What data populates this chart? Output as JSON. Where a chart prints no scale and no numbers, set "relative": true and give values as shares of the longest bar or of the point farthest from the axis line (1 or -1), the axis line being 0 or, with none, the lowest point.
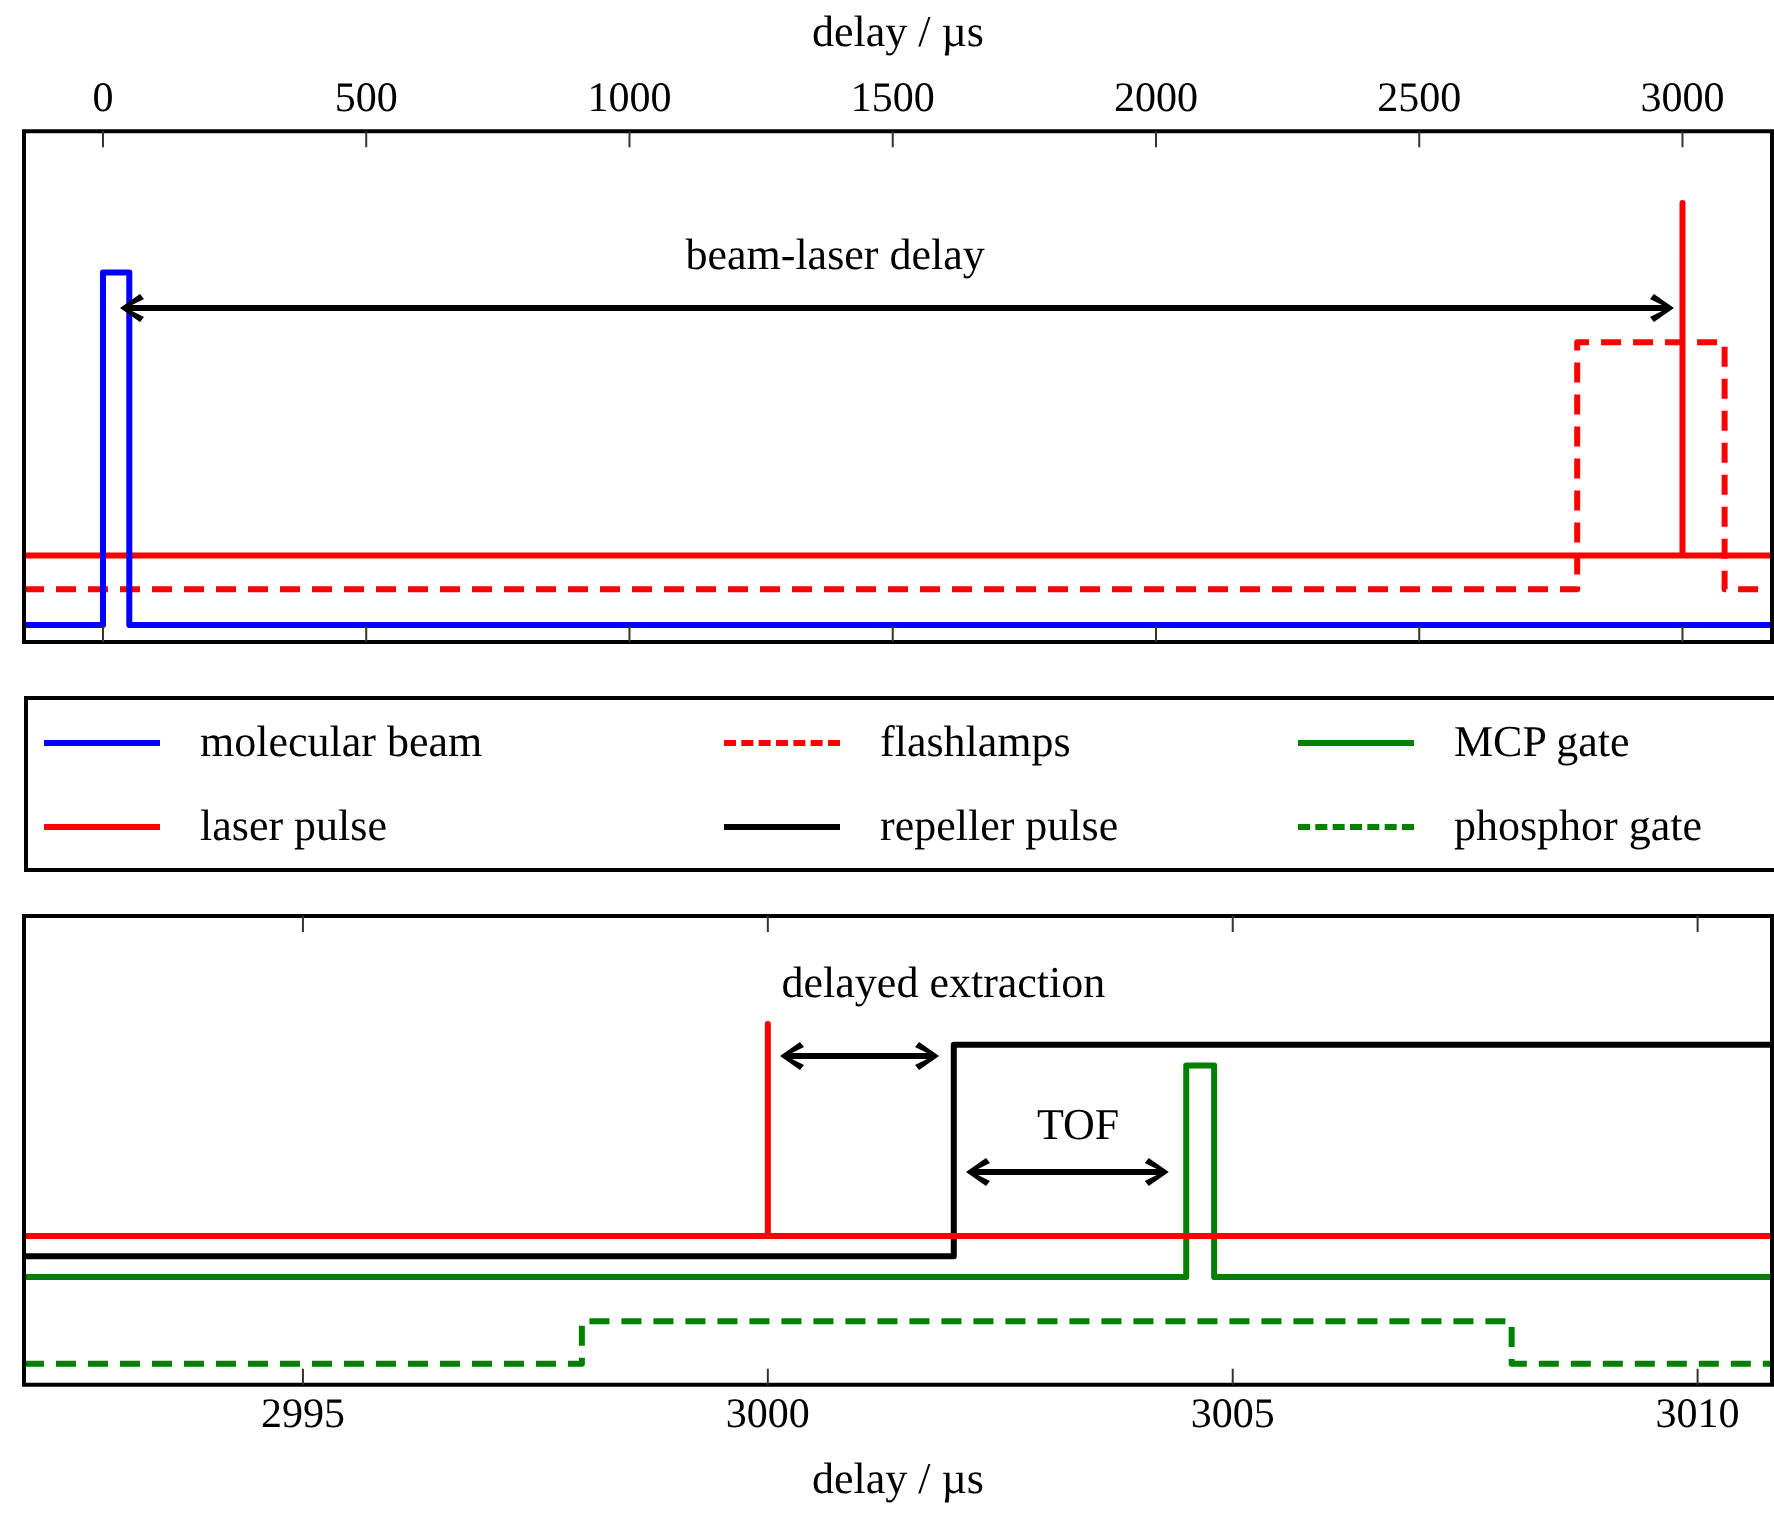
{
  "chart_data": [
    {
      "type": "step",
      "xlabel": "delay / µs",
      "xlim": [
        -150,
        3170
      ],
      "xticks": [
        0,
        500,
        1000,
        1500,
        2000,
        2500,
        3000
      ],
      "relative": true,
      "legend": "bottom",
      "annotations": [
        "beam-laser delay"
      ],
      "series": [
        {
          "name": "molecular beam",
          "color": "#0000ff",
          "x": [
            -150,
            0,
            50,
            3170
          ],
          "values": [
            0,
            0.835,
            0,
            0
          ]
        },
        {
          "name": "laser pulse",
          "color": "#ff0000",
          "x": [
            -150,
            3000,
            3000,
            3170
          ],
          "values": [
            0.165,
            1,
            0.165,
            0.165
          ]
        },
        {
          "name": "flashlamps",
          "color": "#ff0000",
          "line_style": "dashed",
          "x": [
            -150,
            2800,
            3080,
            3170
          ],
          "values": [
            0.085,
            0.67,
            0.085,
            0.085
          ]
        }
      ]
    },
    {
      "type": "step",
      "xlabel": "delay / µs",
      "xlim": [
        2992,
        3010.8
      ],
      "xticks": [
        2995,
        3000,
        3005,
        3010
      ],
      "relative": true,
      "legend": "top",
      "annotations": [
        "delayed extraction",
        "TOF"
      ],
      "series": [
        {
          "color": "#ff0000",
          "x": [
            2992,
            3000,
            3000,
            3010.8
          ],
          "values": [
            0.412,
            1,
            0.412,
            0.412
          ]
        },
        {
          "name": "repeller pulse",
          "color": "#000000",
          "x": [
            2992,
            3002,
            3010.8
          ],
          "values": [
            0.356,
            0.942,
            0.942
          ]
        },
        {
          "name": "MCP gate",
          "color": "#008000",
          "x": [
            2992,
            3004.5,
            3004.8,
            3010.8
          ],
          "values": [
            0.299,
            0.885,
            0.299,
            0.299
          ]
        },
        {
          "name": "phosphor gate",
          "color": "#008000",
          "line_style": "dashed",
          "x": [
            2992,
            2998,
            3008,
            3010.8
          ],
          "values": [
            0.058,
            0.176,
            0.058,
            0.058
          ]
        }
      ]
    }
  ]
}
